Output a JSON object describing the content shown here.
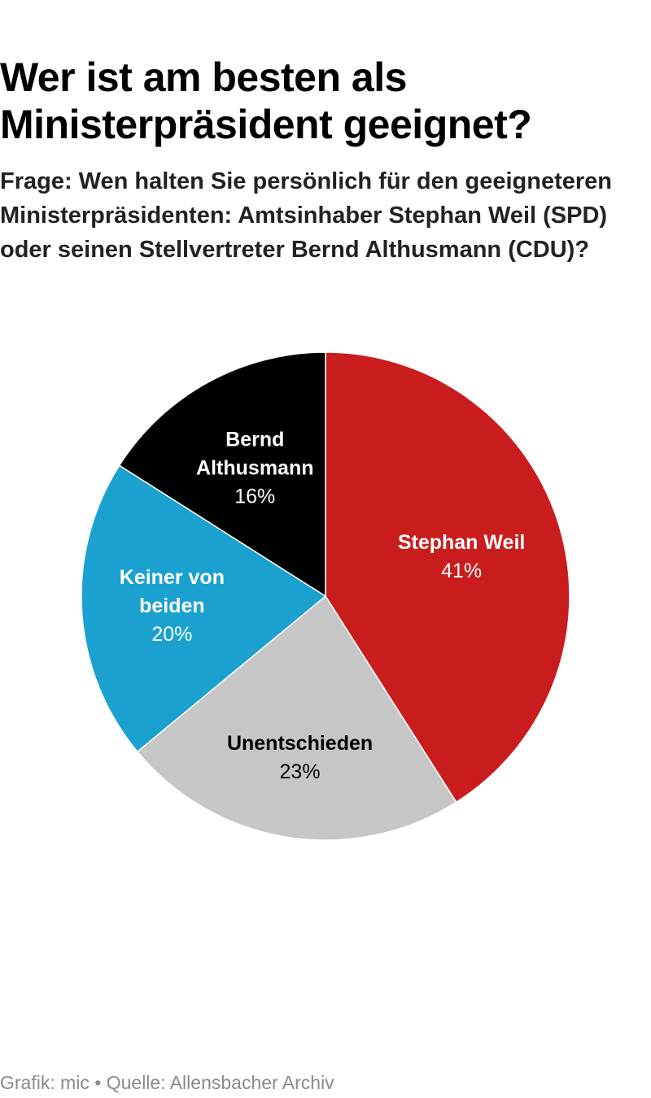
{
  "header": {
    "title": "Wer ist am besten als Ministerpräsident geeignet?",
    "subtitle": "Frage: Wen halten Sie persönlich für den geeigneteren Ministerpräsidenten: Amtsinhaber Stephan Weil (SPD) oder seinen Stellvertreter Bernd Althusmann (CDU)?"
  },
  "chart_data": {
    "type": "pie",
    "title": "Wer ist am besten als Ministerpräsident geeignet?",
    "subtitle": "Frage: Wen halten Sie persönlich für den geeigneteren Ministerpräsidenten: Amtsinhaber Stephan Weil (SPD) oder seinen Stellvertreter Bernd Althusmann (CDU)?",
    "unit": "%",
    "slices": [
      {
        "label": "Stephan Weil",
        "label_lines": [
          "Stephan Weil"
        ],
        "value": 41,
        "value_text": "41%",
        "color": "#c91d1d",
        "text_color": "#ffffff"
      },
      {
        "label": "Unentschieden",
        "label_lines": [
          "Unentschieden"
        ],
        "value": 23,
        "value_text": "23%",
        "color": "#c6c6c6",
        "text_color": "#000000"
      },
      {
        "label": "Keiner von beiden",
        "label_lines": [
          "Keiner von",
          "beiden"
        ],
        "value": 20,
        "value_text": "20%",
        "color": "#1ba1d0",
        "text_color": "#ffffff"
      },
      {
        "label": "Bernd Althusmann",
        "label_lines": [
          "Bernd",
          "Althusmann"
        ],
        "value": 16,
        "value_text": "16%",
        "color": "#000000",
        "text_color": "#ffffff"
      }
    ]
  },
  "footer": {
    "text": "Grafik: mic • Quelle: Allensbacher Archiv"
  }
}
